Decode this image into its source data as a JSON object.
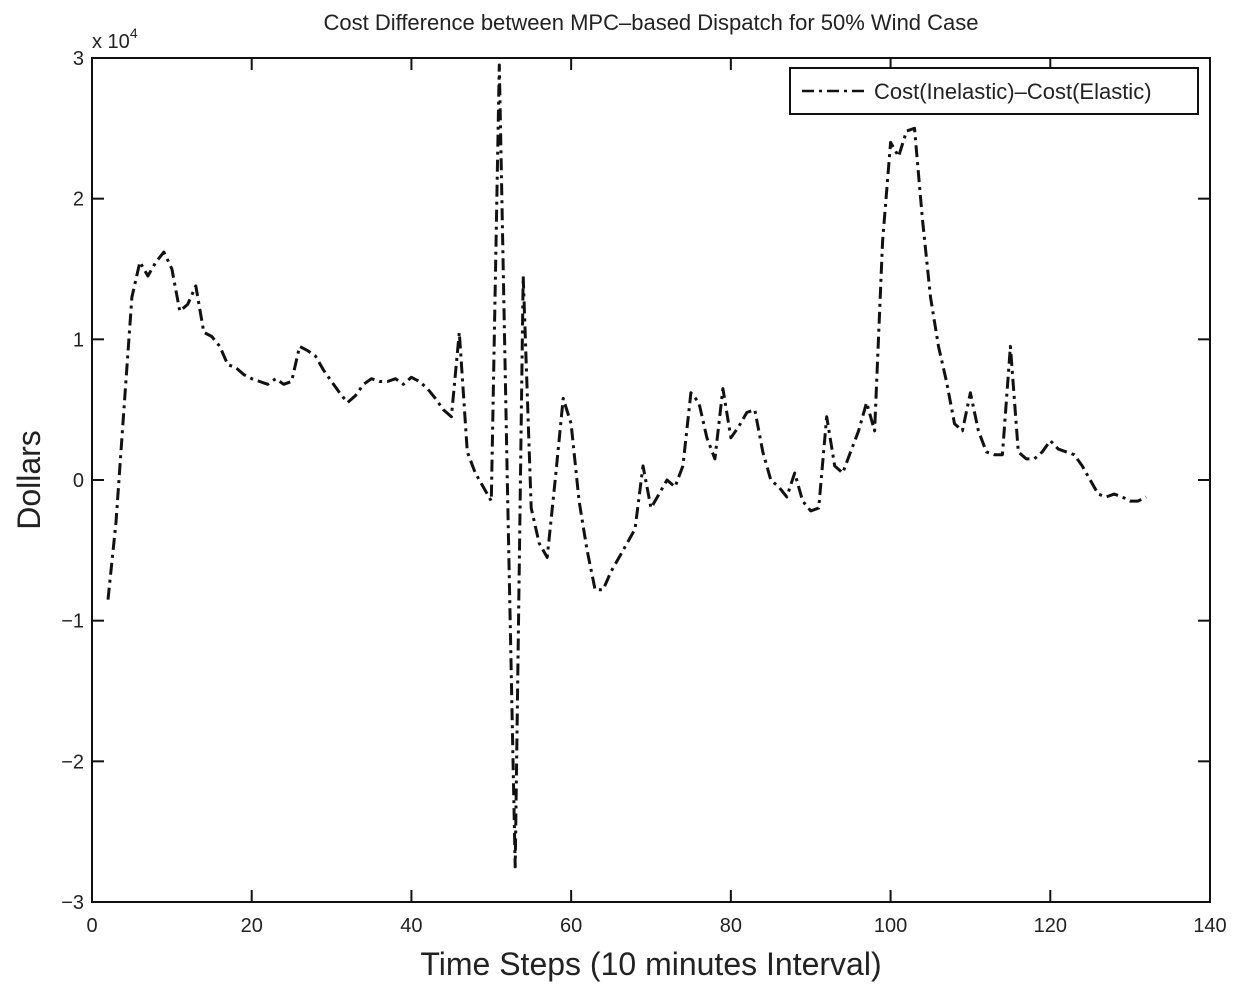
{
  "chart_data": {
    "type": "line",
    "title": "Cost Difference between MPC–based Dispatch for 50% Wind Case",
    "xlabel": "Time Steps (10 minutes Interval)",
    "ylabel": "Dollars",
    "y_multiplier_label": "x 10",
    "y_multiplier_exponent": "4",
    "xlim": [
      0,
      140
    ],
    "ylim": [
      -3,
      3
    ],
    "x_ticks": [
      0,
      20,
      40,
      60,
      80,
      100,
      120,
      140
    ],
    "y_ticks": [
      -3,
      -2,
      -1,
      0,
      1,
      2,
      3
    ],
    "x_tick_labels": [
      "0",
      "20",
      "40",
      "60",
      "80",
      "100",
      "120",
      "140"
    ],
    "y_tick_labels": [
      "−3",
      "−2",
      "−1",
      "0",
      "1",
      "2",
      "3"
    ],
    "grid": false,
    "legend_position": "top-right",
    "line_color": "#111111",
    "line_style": "dash-dot",
    "series": [
      {
        "name": "Cost(Inelastic)–Cost(Elastic)",
        "x": [
          2,
          3,
          4,
          5,
          6,
          7,
          8,
          9,
          10,
          11,
          12,
          13,
          14,
          15,
          16,
          17,
          18,
          19,
          20,
          21,
          22,
          23,
          24,
          25,
          26,
          27,
          28,
          29,
          30,
          31,
          32,
          33,
          34,
          35,
          36,
          37,
          38,
          39,
          40,
          41,
          42,
          43,
          44,
          45,
          46,
          47,
          48,
          49,
          50,
          51,
          52,
          53,
          54,
          55,
          56,
          57,
          58,
          59,
          60,
          61,
          62,
          63,
          64,
          65,
          66,
          67,
          68,
          69,
          70,
          71,
          72,
          73,
          74,
          75,
          76,
          77,
          78,
          79,
          80,
          81,
          82,
          83,
          84,
          85,
          86,
          87,
          88,
          89,
          90,
          91,
          92,
          93,
          94,
          95,
          96,
          97,
          98,
          99,
          100,
          101,
          102,
          103,
          104,
          105,
          106,
          107,
          108,
          109,
          110,
          111,
          112,
          113,
          114,
          115,
          116,
          117,
          118,
          119,
          120,
          121,
          122,
          123,
          124,
          125,
          126,
          127,
          128,
          129,
          130,
          131,
          132
        ],
        "values": [
          -0.85,
          -0.3,
          0.5,
          1.3,
          1.55,
          1.45,
          1.55,
          1.62,
          1.5,
          1.2,
          1.25,
          1.38,
          1.05,
          1.02,
          0.95,
          0.82,
          0.8,
          0.75,
          0.72,
          0.7,
          0.68,
          0.72,
          0.68,
          0.7,
          0.95,
          0.92,
          0.88,
          0.78,
          0.7,
          0.62,
          0.55,
          0.6,
          0.68,
          0.72,
          0.7,
          0.7,
          0.72,
          0.68,
          0.73,
          0.7,
          0.65,
          0.58,
          0.5,
          0.45,
          1.05,
          0.2,
          0.05,
          -0.05,
          -0.15,
          2.95,
          0.0,
          -2.75,
          1.45,
          -0.2,
          -0.45,
          -0.55,
          0.0,
          0.58,
          0.4,
          -0.15,
          -0.5,
          -0.78,
          -0.78,
          -0.65,
          -0.55,
          -0.45,
          -0.35,
          0.1,
          -0.2,
          -0.1,
          0.0,
          -0.05,
          0.1,
          0.62,
          0.55,
          0.3,
          0.15,
          0.65,
          0.3,
          0.38,
          0.48,
          0.5,
          0.2,
          0.0,
          -0.05,
          -0.12,
          0.05,
          -0.15,
          -0.22,
          -0.2,
          0.45,
          0.1,
          0.05,
          0.2,
          0.35,
          0.55,
          0.35,
          1.7,
          2.4,
          2.3,
          2.48,
          2.5,
          1.85,
          1.3,
          0.95,
          0.7,
          0.4,
          0.35,
          0.62,
          0.35,
          0.2,
          0.18,
          0.18,
          0.95,
          0.2,
          0.15,
          0.15,
          0.2,
          0.28,
          0.22,
          0.2,
          0.18,
          0.1,
          0.0,
          -0.1,
          -0.12,
          -0.1,
          -0.12,
          -0.15,
          -0.15,
          -0.12
        ]
      }
    ]
  }
}
